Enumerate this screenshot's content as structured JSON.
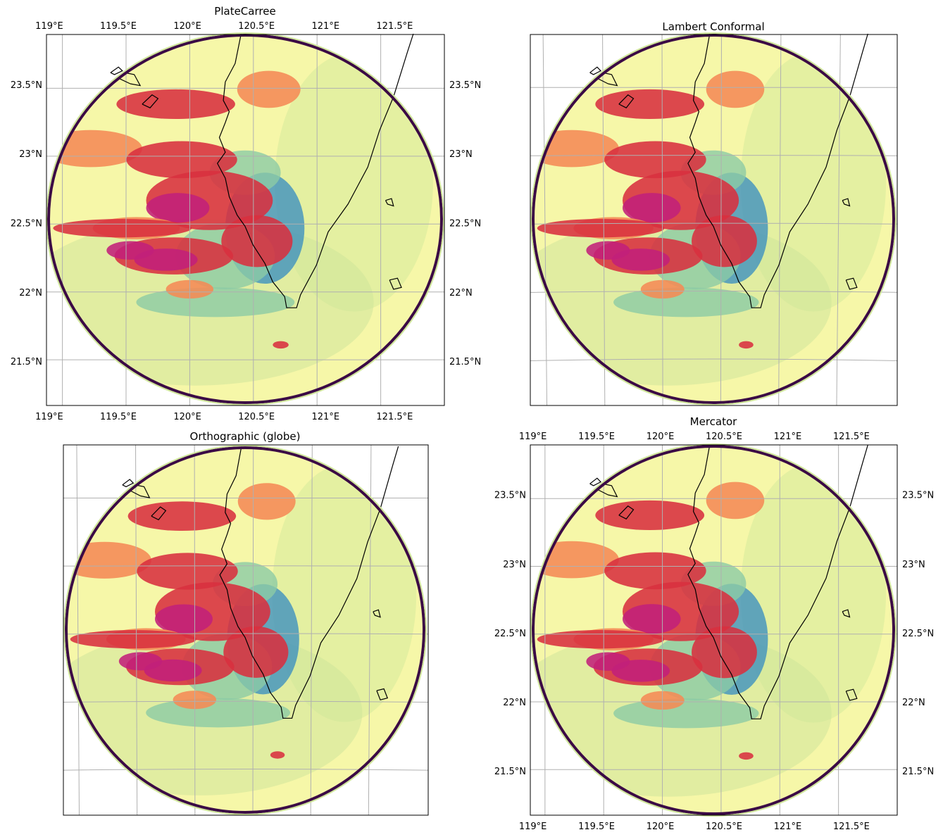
{
  "colors": {
    "ring": "#3b0a45",
    "coast": "#000000",
    "grid": "#b0b0b0",
    "radar_low": "#f6f7a8",
    "radar_mid": "#cfe69a",
    "radar_teal": "#8ccaa5",
    "radar_blue": "#3e91bf",
    "radar_orange": "#f58a55",
    "radar_red": "#d8303f",
    "radar_magenta": "#c2207a"
  },
  "chart_data": [
    {
      "type": "heatmap",
      "title": "PlateCarree",
      "projection": "PlateCarree",
      "lon_range": [
        118.98,
        121.86
      ],
      "lat_range": [
        21.18,
        23.86
      ],
      "lon_ticks": [
        119,
        119.5,
        120,
        120.5,
        121,
        121.5
      ],
      "lon_tick_labels": [
        "119°E",
        "119.5°E",
        "120°E",
        "120.5°E",
        "121°E",
        "121.5°E"
      ],
      "lat_ticks": [
        21.5,
        22,
        22.5,
        23,
        23.5
      ],
      "lat_tick_labels": [
        "21.5°N",
        "22°N",
        "22.5°N",
        "23°N",
        "23.5°N"
      ],
      "tick_labels_shown": true,
      "grid": true
    },
    {
      "type": "heatmap",
      "title": "Lambert Conformal",
      "projection": "LambertConformal",
      "lon_range": [
        118.98,
        121.86
      ],
      "lat_range": [
        21.18,
        23.86
      ],
      "tick_labels_shown": false,
      "grid": true
    },
    {
      "type": "heatmap",
      "title": "Orthographic (globe)",
      "projection": "Orthographic",
      "lon_range": [
        118.98,
        121.86
      ],
      "lat_range": [
        21.18,
        23.86
      ],
      "tick_labels_shown": false,
      "grid": true
    },
    {
      "type": "heatmap",
      "title": "Mercator",
      "projection": "Mercator",
      "lon_range": [
        118.98,
        121.86
      ],
      "lat_range": [
        21.18,
        23.86
      ],
      "lon_ticks": [
        119,
        119.5,
        120,
        120.5,
        121,
        121.5
      ],
      "lon_tick_labels": [
        "119°E",
        "119.5°E",
        "120°E",
        "120.5°E",
        "121°E",
        "121.5°E"
      ],
      "lat_ticks": [
        21.5,
        22,
        22.5,
        23,
        23.5
      ],
      "lat_tick_labels": [
        "21.5°N",
        "22°N",
        "22.5°N",
        "23°N",
        "23.5°N"
      ],
      "tick_labels_shown": true,
      "grid": true
    }
  ]
}
